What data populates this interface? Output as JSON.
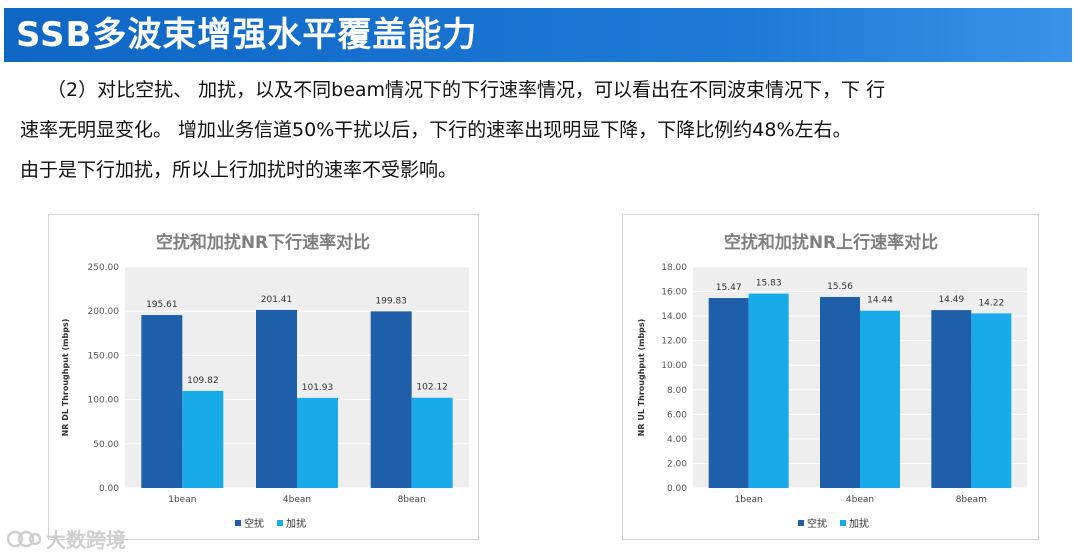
{
  "header": {
    "title": "SSB多波束增强水平覆盖能力"
  },
  "body_text": {
    "line1": "（2）对比空扰、 加扰，以及不同beam情况下的下行速率情况，可以看出在不同波束情况下，下 行",
    "line2": "速率无明显变化。 增加业务信道50%干扰以后，下行的速率出现明显下降，下降比例约48%左右。",
    "line3": "由于是下行加扰，所以上行加扰时的速率不受影响。"
  },
  "colors": {
    "series_a": "#1f5ea8",
    "series_b": "#19aaea",
    "plot_bg": "#eeeeee",
    "title_grey": "#7f7f7f"
  },
  "chart_data": [
    {
      "type": "bar",
      "title": "空扰和加扰NR下行速率对比",
      "ylabel": "NR DL Throughput (mbps)",
      "xlabel": "",
      "categories": [
        "1bean",
        "4bean",
        "8bean"
      ],
      "series": [
        {
          "name": "空扰",
          "values": [
            195.61,
            201.41,
            199.83
          ],
          "labels": [
            "195.61",
            "201.41",
            "199.83"
          ]
        },
        {
          "name": "加扰",
          "values": [
            109.82,
            101.93,
            102.12
          ],
          "labels": [
            "109.82",
            "101.93",
            "102.12"
          ]
        }
      ],
      "ylim": [
        0,
        250
      ],
      "yticks": [
        0,
        50,
        100,
        150,
        200,
        250
      ],
      "ytick_labels": [
        "0.00",
        "50.00",
        "100.00",
        "150.00",
        "200.00",
        "250.00"
      ],
      "legend": "bottom-center"
    },
    {
      "type": "bar",
      "title": "空扰和加扰NR上行速率对比",
      "ylabel": "NR UL Throughput (mbps)",
      "xlabel": "",
      "categories": [
        "1bean",
        "4bean",
        "8beam"
      ],
      "series": [
        {
          "name": "空扰",
          "values": [
            15.47,
            15.56,
            14.49
          ],
          "labels": [
            "15.47",
            "15.56",
            "14.49"
          ]
        },
        {
          "name": "加扰",
          "values": [
            15.83,
            14.44,
            14.22
          ],
          "labels": [
            "15.83",
            "14.44",
            "14.22"
          ]
        }
      ],
      "ylim": [
        0,
        18
      ],
      "yticks": [
        0,
        2,
        4,
        6,
        8,
        10,
        12,
        14,
        16,
        18
      ],
      "ytick_labels": [
        "0.00",
        "2.00",
        "4.00",
        "6.00",
        "8.00",
        "10.00",
        "12.00",
        "14.00",
        "16.00",
        "18.00"
      ],
      "legend": "bottom-center"
    }
  ],
  "watermark": {
    "text": "大数跨境"
  }
}
